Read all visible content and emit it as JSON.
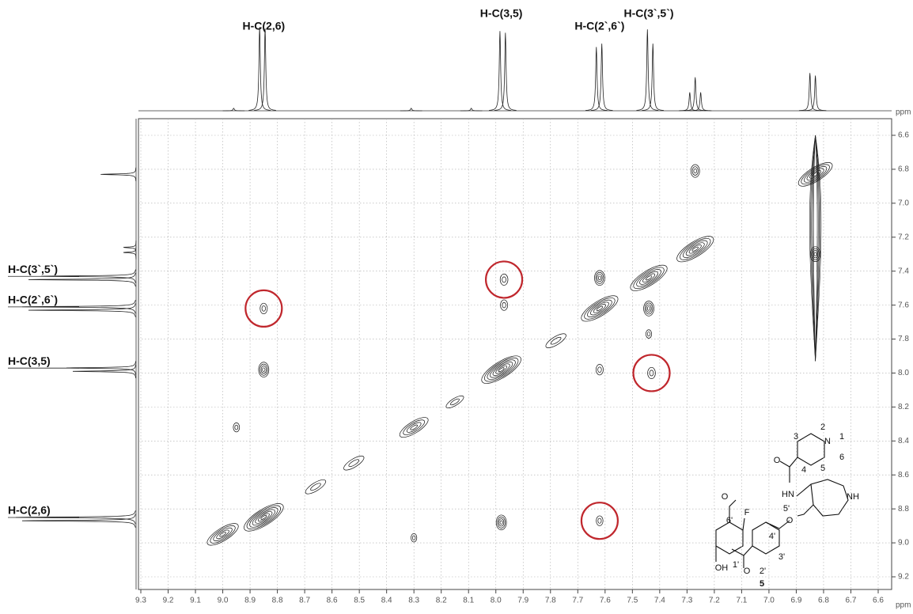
{
  "chart_data": {
    "type": "nmr2d",
    "xlabel": "ppm",
    "ylabel": "ppm",
    "xlim": [
      9.3,
      6.6
    ],
    "ylim": [
      6.6,
      9.2
    ],
    "xticks": [
      9.3,
      9.2,
      9.1,
      {
        "value": 9,
        "label": "9.0"
      },
      8.9,
      8.8,
      8.7,
      8.6,
      8.5,
      8.4,
      8.3,
      8.2,
      8.1,
      {
        "value": 8,
        "label": "8.0"
      },
      7.9,
      7.8,
      7.7,
      7.6,
      7.5,
      7.4,
      7.3,
      7.2,
      7.1,
      {
        "value": 7,
        "label": "7.0"
      },
      6.9,
      6.8,
      6.7,
      6.6
    ],
    "yticks": [
      6.6,
      6.8,
      {
        "value": 7,
        "label": "7.0"
      },
      7.2,
      7.4,
      7.6,
      7.8,
      {
        "value": 8,
        "label": "8.0"
      },
      8.2,
      8.4,
      8.6,
      8.8,
      {
        "value": 9,
        "label": "9.0"
      },
      9.2
    ],
    "grid": true,
    "top_labels": {
      "texts": [
        "H-C(2,6)",
        "H-C(3,5)",
        "H-C(2`,6`)",
        "H-C(3`,5`)"
      ],
      "ppm": [
        8.85,
        7.98,
        7.62,
        7.44
      ]
    },
    "left_labels": {
      "texts": [
        "H-C(3`,5`)",
        "H-C(2`,6`)",
        "H-C(3,5)",
        "H-C(2,6)"
      ],
      "ppm": [
        7.44,
        7.62,
        7.98,
        8.86
      ]
    },
    "f2_projection": {
      "ppm": [
        8.96,
        8.865,
        8.845,
        8.31,
        8.09,
        7.985,
        7.965,
        7.632,
        7.612,
        7.445,
        7.425,
        7.29,
        7.27,
        7.25,
        6.85,
        6.83
      ],
      "height": [
        0.03,
        1.0,
        0.98,
        0.03,
        0.03,
        0.95,
        0.93,
        0.76,
        0.8,
        0.97,
        0.8,
        0.22,
        0.4,
        0.22,
        0.45,
        0.42
      ]
    },
    "f1_projection": {
      "ppm": [
        6.83,
        7.26,
        7.29,
        7.43,
        7.45,
        7.61,
        7.63,
        7.97,
        7.99,
        8.85,
        8.87
      ],
      "height": [
        0.28,
        0.1,
        0.1,
        0.75,
        0.85,
        0.9,
        0.85,
        0.55,
        0.5,
        0.95,
        0.9
      ]
    },
    "peaks": {
      "x": [
        8.85,
        7.98,
        7.62,
        7.44,
        7.27,
        8.3,
        8.52,
        8.66,
        9.0,
        7.78,
        8.15,
        8.85,
        7.98,
        8.85,
        7.97,
        7.97,
        7.43,
        7.62,
        7.62,
        7.44,
        7.62,
        7.27,
        8.95,
        8.3,
        7.44,
        6.83,
        6.83
      ],
      "y": [
        8.85,
        7.98,
        7.62,
        7.44,
        7.27,
        8.32,
        8.53,
        8.67,
        8.95,
        7.81,
        8.17,
        7.98,
        8.88,
        7.62,
        7.45,
        7.6,
        8.0,
        8.87,
        7.44,
        7.62,
        7.98,
        6.81,
        8.32,
        8.97,
        7.77,
        6.83,
        7.3
      ],
      "intensity": [
        1.0,
        1.0,
        0.9,
        0.9,
        0.9,
        0.6,
        0.3,
        0.3,
        0.7,
        0.3,
        0.2,
        0.6,
        0.6,
        0.3,
        0.35,
        0.3,
        0.35,
        0.25,
        0.6,
        0.6,
        0.3,
        0.45,
        0.2,
        0.15,
        0.15,
        0.8,
        0.6
      ]
    },
    "ridges": {
      "x": [
        6.83
      ],
      "y_start": [
        6.6
      ],
      "y_end": [
        7.93
      ]
    },
    "highlight": {
      "color": "#c0272d",
      "x": [
        8.85,
        7.97,
        7.43,
        7.62
      ],
      "y": [
        7.62,
        7.45,
        8.0,
        8.87
      ]
    },
    "structure": {
      "atoms": [
        "3",
        "2",
        "N",
        "1",
        "6",
        "5",
        "4",
        "O",
        "HN",
        "NH",
        "O",
        "O",
        "F",
        "6'",
        "5'",
        "4'",
        "1'",
        "2'",
        "3'",
        "OH",
        "O",
        "5"
      ]
    }
  }
}
